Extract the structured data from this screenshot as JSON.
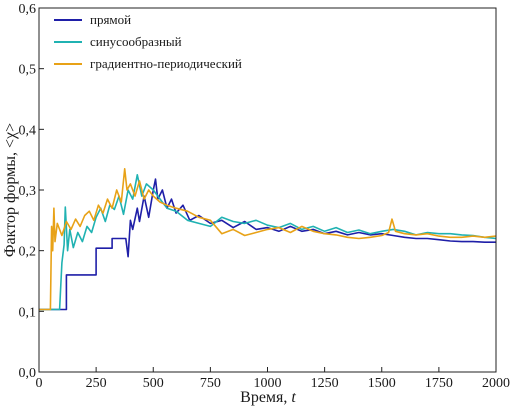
{
  "chart_data": {
    "type": "line",
    "xlabel": "Время, ",
    "xlabel_italic": "t",
    "ylabel": "Фактор формы, <χ>",
    "xlim": [
      0,
      2000
    ],
    "ylim": [
      0.0,
      0.6
    ],
    "x_ticks": [
      "0",
      "250",
      "500",
      "750",
      "1000",
      "1250",
      "1500",
      "1750",
      "2000"
    ],
    "y_ticks": [
      "0,0",
      "0,1",
      "0,2",
      "0,3",
      "0,4",
      "0,5",
      "0,6"
    ],
    "grid": false,
    "legend_position": "top-left",
    "series": [
      {
        "name": "прямой",
        "color": "#1f1fa8",
        "x": [
          0,
          120,
          120,
          250,
          250,
          320,
          320,
          380,
          390,
          400,
          410,
          430,
          440,
          460,
          480,
          500,
          510,
          520,
          540,
          560,
          580,
          600,
          630,
          660,
          700,
          750,
          800,
          850,
          900,
          950,
          1000,
          1050,
          1100,
          1150,
          1200,
          1250,
          1300,
          1350,
          1400,
          1450,
          1500,
          1550,
          1600,
          1650,
          1700,
          1750,
          1800,
          1850,
          1900,
          1950,
          2000
        ],
        "y": [
          0.103,
          0.103,
          0.16,
          0.16,
          0.204,
          0.204,
          0.22,
          0.22,
          0.19,
          0.25,
          0.235,
          0.27,
          0.248,
          0.29,
          0.255,
          0.3,
          0.318,
          0.285,
          0.3,
          0.27,
          0.285,
          0.262,
          0.275,
          0.25,
          0.258,
          0.245,
          0.25,
          0.238,
          0.248,
          0.235,
          0.238,
          0.232,
          0.24,
          0.232,
          0.235,
          0.228,
          0.232,
          0.226,
          0.23,
          0.226,
          0.228,
          0.225,
          0.222,
          0.22,
          0.22,
          0.218,
          0.216,
          0.215,
          0.215,
          0.214,
          0.214
        ]
      },
      {
        "name": "синусообразный",
        "color": "#20b2b2",
        "x": [
          0,
          90,
          100,
          110,
          115,
          125,
          135,
          150,
          170,
          190,
          210,
          230,
          250,
          270,
          290,
          310,
          330,
          350,
          370,
          390,
          410,
          430,
          450,
          470,
          500,
          530,
          560,
          600,
          650,
          700,
          750,
          800,
          850,
          900,
          950,
          1000,
          1050,
          1100,
          1150,
          1200,
          1250,
          1300,
          1350,
          1400,
          1450,
          1500,
          1550,
          1600,
          1650,
          1700,
          1750,
          1800,
          1850,
          1900,
          1950,
          2000
        ],
        "y": [
          0.103,
          0.103,
          0.18,
          0.21,
          0.272,
          0.2,
          0.235,
          0.205,
          0.23,
          0.215,
          0.24,
          0.23,
          0.255,
          0.27,
          0.248,
          0.275,
          0.268,
          0.29,
          0.26,
          0.3,
          0.285,
          0.325,
          0.29,
          0.31,
          0.3,
          0.285,
          0.27,
          0.265,
          0.25,
          0.245,
          0.24,
          0.255,
          0.248,
          0.245,
          0.25,
          0.242,
          0.238,
          0.245,
          0.235,
          0.24,
          0.232,
          0.238,
          0.23,
          0.234,
          0.228,
          0.232,
          0.235,
          0.232,
          0.226,
          0.23,
          0.228,
          0.228,
          0.226,
          0.225,
          0.222,
          0.22
        ]
      },
      {
        "name": "градиентно-периодический",
        "color": "#e8a217",
        "x": [
          0,
          50,
          55,
          60,
          65,
          70,
          80,
          100,
          120,
          140,
          160,
          180,
          200,
          220,
          240,
          260,
          280,
          300,
          320,
          340,
          360,
          375,
          385,
          400,
          420,
          440,
          460,
          480,
          500,
          530,
          560,
          600,
          650,
          700,
          750,
          800,
          850,
          900,
          950,
          1000,
          1050,
          1100,
          1150,
          1200,
          1250,
          1300,
          1350,
          1400,
          1450,
          1500,
          1530,
          1545,
          1560,
          1600,
          1650,
          1700,
          1750,
          1800,
          1850,
          1900,
          1950,
          2000
        ],
        "y": [
          0.103,
          0.103,
          0.24,
          0.2,
          0.27,
          0.215,
          0.245,
          0.225,
          0.248,
          0.235,
          0.252,
          0.24,
          0.258,
          0.265,
          0.25,
          0.275,
          0.262,
          0.285,
          0.27,
          0.3,
          0.28,
          0.335,
          0.3,
          0.31,
          0.29,
          0.315,
          0.285,
          0.3,
          0.29,
          0.28,
          0.275,
          0.27,
          0.265,
          0.255,
          0.25,
          0.228,
          0.235,
          0.225,
          0.23,
          0.235,
          0.238,
          0.23,
          0.24,
          0.232,
          0.228,
          0.226,
          0.222,
          0.22,
          0.222,
          0.225,
          0.23,
          0.252,
          0.232,
          0.228,
          0.226,
          0.228,
          0.224,
          0.222,
          0.222,
          0.224,
          0.222,
          0.224
        ]
      }
    ]
  }
}
